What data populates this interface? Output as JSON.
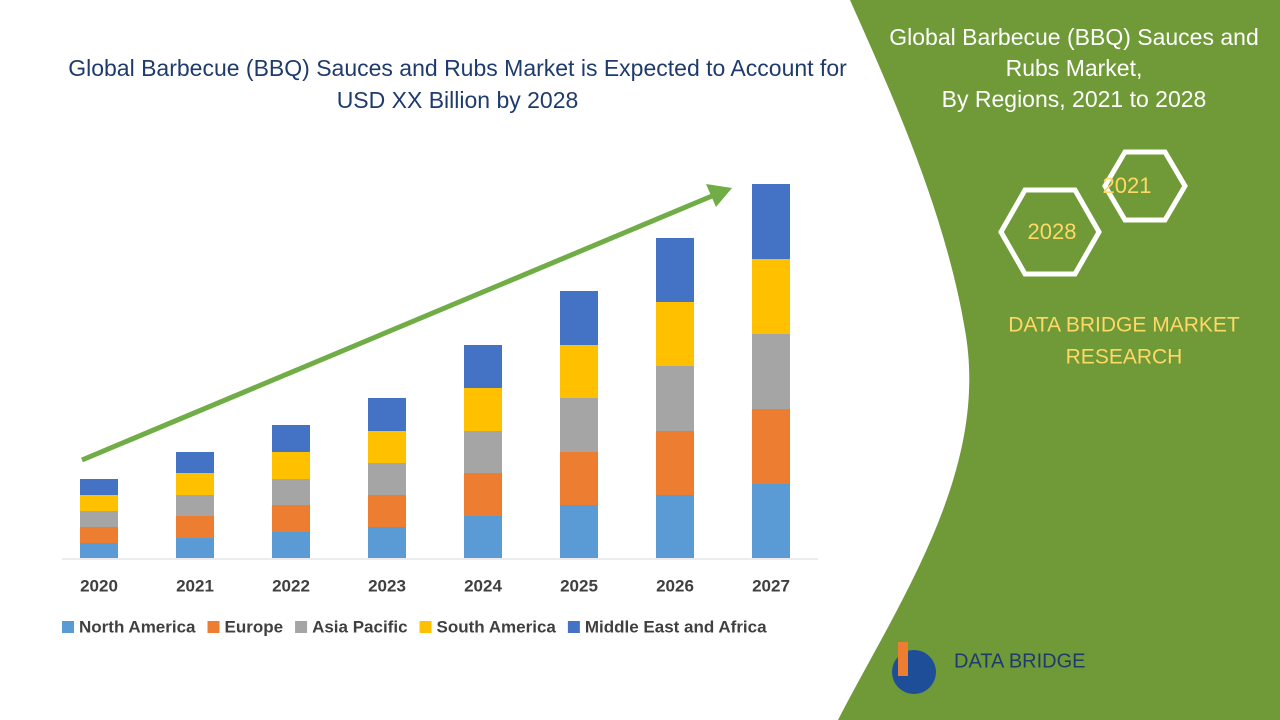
{
  "chart_data": {
    "type": "stacked-bar",
    "title": "Global Barbecue (BBQ) Sauces and Rubs Market is Expected to Account for USD XX Billion by 2028",
    "categories": [
      "2020",
      "2021",
      "2022",
      "2023",
      "2024",
      "2025",
      "2026",
      "2027"
    ],
    "series": [
      {
        "name": "North America",
        "color": "#5b9bd5",
        "values": [
          15,
          20,
          26,
          31,
          42,
          53,
          63,
          74
        ]
      },
      {
        "name": "Europe",
        "color": "#ed7d31",
        "values": [
          16,
          22,
          27,
          32,
          43,
          53,
          64,
          75
        ]
      },
      {
        "name": "Asia Pacific",
        "color": "#a5a5a5",
        "values": [
          16,
          21,
          26,
          32,
          42,
          54,
          65,
          75
        ]
      },
      {
        "name": "South America",
        "color": "#ffc000",
        "values": [
          16,
          22,
          27,
          32,
          43,
          53,
          64,
          75
        ]
      },
      {
        "name": "Middle East and Africa",
        "color": "#4472c4",
        "values": [
          16,
          21,
          27,
          33,
          43,
          54,
          64,
          75
        ]
      }
    ]
  },
  "panel": {
    "title_lines": [
      "Global Barbecue (BBQ) Sauces and",
      "Rubs Market,",
      "By Regions, 2021 to 2028"
    ],
    "hexagons": [
      "2021",
      "2028"
    ],
    "brand_lines": [
      "DATA BRIDGE MARKET",
      "RESEARCH"
    ],
    "logo_text": "DATA BRIDGE"
  }
}
